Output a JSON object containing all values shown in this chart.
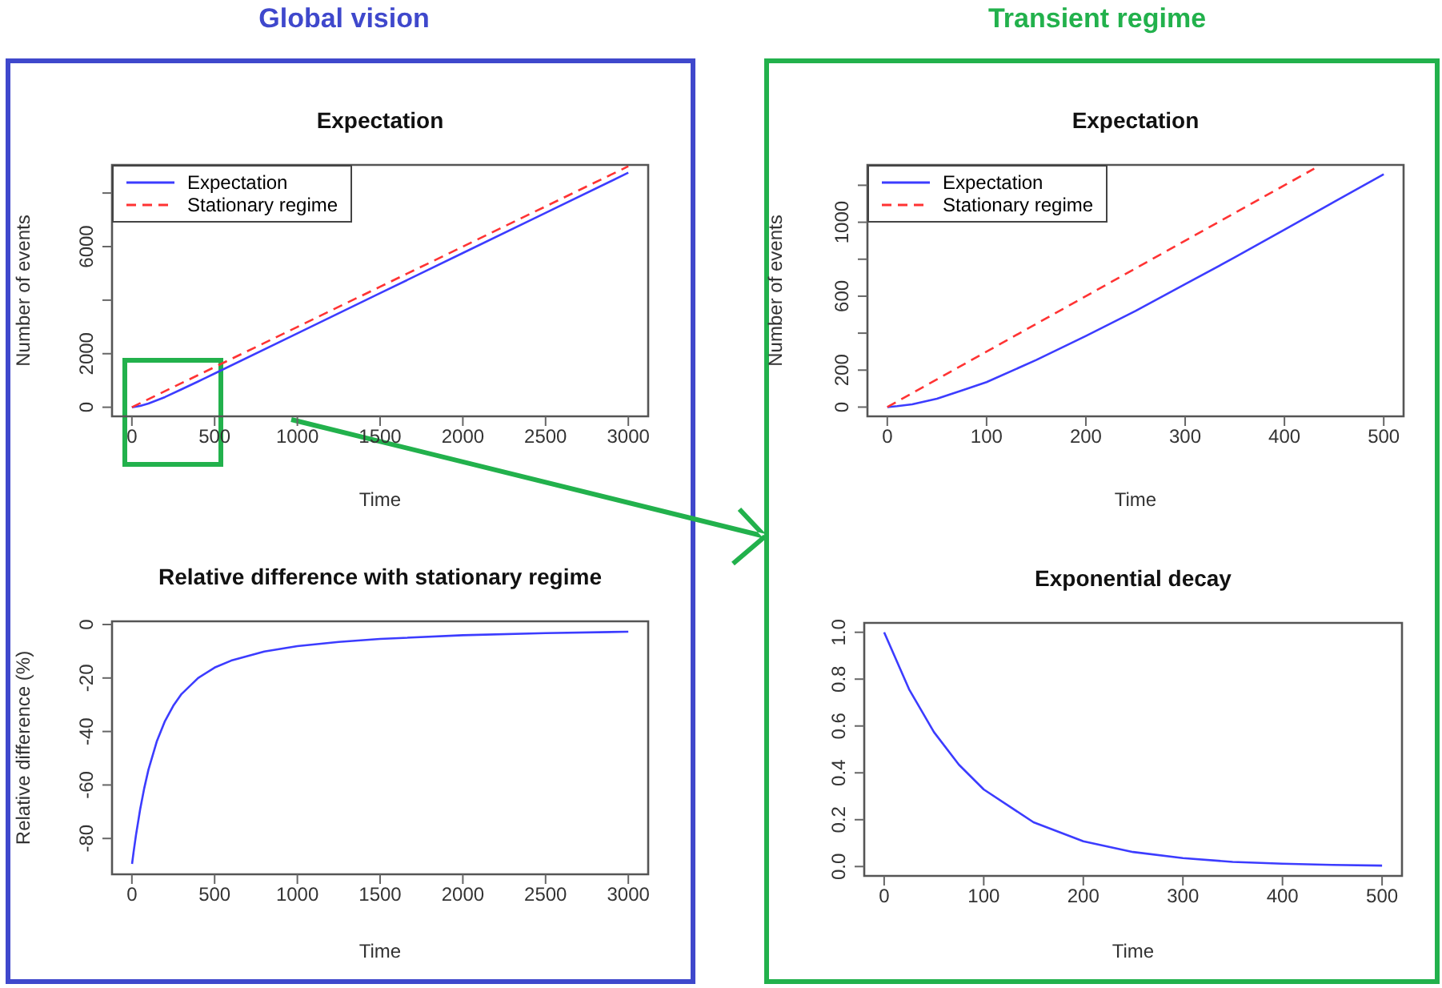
{
  "chart_data": [
    {
      "type": "line",
      "title": "Expectation",
      "annotations": [
        "Global vision"
      ],
      "xlabel": "Time",
      "ylabel": "Number of events",
      "xlim": [
        -120,
        3120
      ],
      "ylim": [
        -340,
        9050
      ],
      "xticks": [
        0,
        500,
        1000,
        1500,
        2000,
        2500,
        3000
      ],
      "yticks": [
        0,
        2000,
        {
          "value": 4000,
          "label": null
        },
        6000,
        {
          "value": 8000,
          "label": null
        }
      ],
      "legend": "top left",
      "grid": false,
      "series": [
        {
          "name": "Expectation",
          "color": "#3c3cff",
          "line_style": "solid",
          "x": [
            0,
            50,
            100,
            200,
            300,
            400,
            500,
            1000,
            1500,
            2000,
            2500,
            3000
          ],
          "values": [
            0,
            50,
            140,
            380,
            670,
            960,
            1260,
            2760,
            4260,
            5760,
            7260,
            8760
          ]
        },
        {
          "name": "Stationary regime",
          "color": "#ff3333",
          "line_style": "dashed",
          "x": [
            0,
            500,
            1000,
            1500,
            2000,
            2500,
            3000
          ],
          "values": [
            0,
            1500,
            3000,
            4500,
            6000,
            7500,
            9000
          ]
        }
      ]
    },
    {
      "type": "line",
      "title": "Expectation",
      "annotations": [
        "Transient regime"
      ],
      "xlabel": "Time",
      "ylabel": "Number of events",
      "xlim": [
        -20,
        520
      ],
      "ylim": [
        -50,
        1310
      ],
      "xticks": [
        0,
        100,
        200,
        300,
        400,
        500
      ],
      "yticks": [
        0,
        200,
        {
          "value": 400,
          "label": null
        },
        600,
        {
          "value": 800,
          "label": null
        },
        1000,
        {
          "value": 1200,
          "label": null
        }
      ],
      "legend": "top left",
      "grid": false,
      "series": [
        {
          "name": "Expectation",
          "color": "#3c3cff",
          "line_style": "solid",
          "x": [
            0,
            10,
            25,
            50,
            75,
            100,
            150,
            200,
            250,
            300,
            350,
            400,
            450,
            500
          ],
          "values": [
            0,
            5,
            15,
            45,
            90,
            135,
            255,
            385,
            520,
            665,
            810,
            960,
            1110,
            1260
          ]
        },
        {
          "name": "Stationary regime",
          "color": "#ff3333",
          "line_style": "dashed",
          "x": [
            0,
            100,
            200,
            300,
            400,
            430
          ],
          "values": [
            0,
            300,
            600,
            900,
            1200,
            1290
          ]
        }
      ]
    },
    {
      "type": "line",
      "title": "Relative difference with stationary regime",
      "xlabel": "Time",
      "ylabel": "Relative difference (%)",
      "xlim": [
        -120,
        3120
      ],
      "ylim": [
        -93.4,
        1.2
      ],
      "xticks": [
        0,
        500,
        1000,
        1500,
        2000,
        2500,
        3000
      ],
      "yticks": [
        0,
        -20,
        -40,
        -60,
        -80
      ],
      "grid": false,
      "series": [
        {
          "color": "#3c3cff",
          "line_style": "solid",
          "x": [
            1,
            10,
            25,
            50,
            75,
            100,
            150,
            200,
            250,
            300,
            400,
            500,
            600,
            800,
            1000,
            1250,
            1500,
            2000,
            2500,
            3000
          ],
          "values": [
            -89.5,
            -85.2,
            -78.6,
            -69.1,
            -61.1,
            -54.3,
            -43.8,
            -36.1,
            -30.4,
            -26.0,
            -20.0,
            -16.1,
            -13.5,
            -10.1,
            -8.1,
            -6.5,
            -5.4,
            -4.0,
            -3.2,
            -2.7
          ]
        }
      ]
    },
    {
      "type": "line",
      "title": "Exponential decay",
      "xlabel": "Time",
      "xlim": [
        -20,
        520
      ],
      "ylim": [
        -0.04,
        1.04
      ],
      "xticks": [
        0,
        100,
        200,
        300,
        400,
        500
      ],
      "yticks": [
        {
          "value": 0,
          "label": "0.0"
        },
        0.2,
        0.4,
        0.6,
        0.8,
        {
          "value": 1,
          "label": "1.0"
        }
      ],
      "grid": false,
      "series": [
        {
          "color": "#3c3cff",
          "line_style": "solid",
          "x": [
            0,
            25,
            50,
            75,
            100,
            150,
            200,
            250,
            300,
            350,
            400,
            450,
            500
          ],
          "values": [
            1,
            0.757,
            0.574,
            0.435,
            0.329,
            0.189,
            0.108,
            0.062,
            0.036,
            0.02,
            0.012,
            0.007,
            0.004
          ]
        }
      ]
    }
  ]
}
